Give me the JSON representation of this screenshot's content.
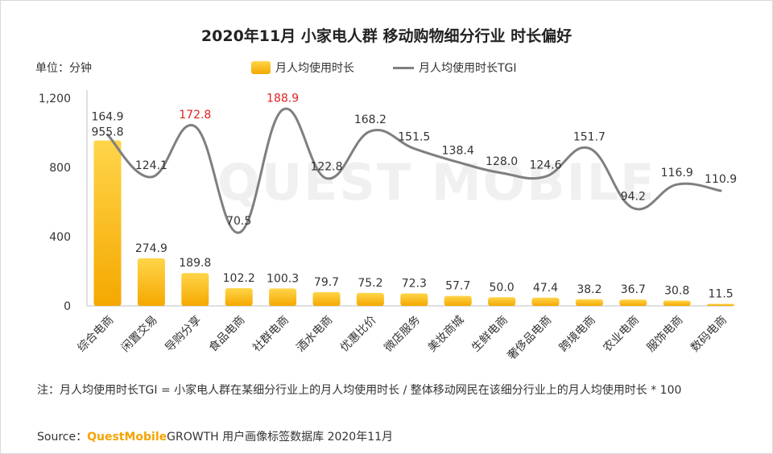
{
  "title": "2020年11月 小家电人群 移动购物细分行业 时长偏好",
  "unit_label": "单位：分钟",
  "legend": {
    "bar": "月人均使用时长",
    "line": "月人均使用时长TGI"
  },
  "watermark": "QUEST MOBILE",
  "note": "注：月人均使用时长TGI = 小家电人群在某细分行业上的月人均使用时长 / 整体移动网民在该细分行业上的月人均使用时长 * 100",
  "source": {
    "prefix": "Source：",
    "brand": "QuestMobile",
    "text": "GROWTH 用户画像标签数据库 2020年11月"
  },
  "colors": {
    "bar_top": "#ffd54a",
    "bar_bottom": "#f5a800",
    "line": "#7f7f7f",
    "highlight": "#e02020",
    "label": "#333333"
  },
  "chart_data": {
    "type": "bar+line",
    "categories": [
      "综合电商",
      "闲置交易",
      "导购分享",
      "食品电商",
      "社群电商",
      "酒水电商",
      "优惠比价",
      "微店服务",
      "美妆商城",
      "生鲜电商",
      "奢侈品电商",
      "跨境电商",
      "农业电商",
      "服饰电商",
      "数码电商"
    ],
    "series": [
      {
        "name": "月人均使用时长",
        "kind": "bar",
        "values": [
          955.8,
          274.9,
          189.8,
          102.2,
          100.3,
          79.7,
          75.2,
          72.3,
          57.7,
          50.0,
          47.4,
          38.2,
          36.7,
          30.8,
          11.5
        ],
        "labels": [
          "955.8",
          "274.9",
          "189.8",
          "102.2",
          "100.3",
          "79.7",
          "75.2",
          "72.3",
          "57.7",
          "50.0",
          "47.4",
          "38.2",
          "36.7",
          "30.8",
          "11.5"
        ]
      },
      {
        "name": "月人均使用时长TGI",
        "kind": "line",
        "values": [
          164.9,
          124.1,
          172.8,
          70.5,
          188.9,
          122.8,
          168.2,
          151.5,
          138.4,
          128.0,
          124.6,
          151.7,
          94.2,
          116.9,
          110.9
        ],
        "labels": [
          "164.9",
          "124.1",
          "172.8",
          "70.5",
          "188.9",
          "122.8",
          "168.2",
          "151.5",
          "138.4",
          "128.0",
          "124.6",
          "151.7",
          "94.2",
          "116.9",
          "110.9"
        ],
        "highlighted": [
          "导购分享",
          "社群电商"
        ]
      }
    ],
    "y_axis": {
      "min": 0,
      "max": 1200,
      "ticks": [
        "0",
        "400",
        "800",
        "1,200"
      ]
    },
    "tgi_axis": {
      "min": 0,
      "max": 200
    }
  }
}
